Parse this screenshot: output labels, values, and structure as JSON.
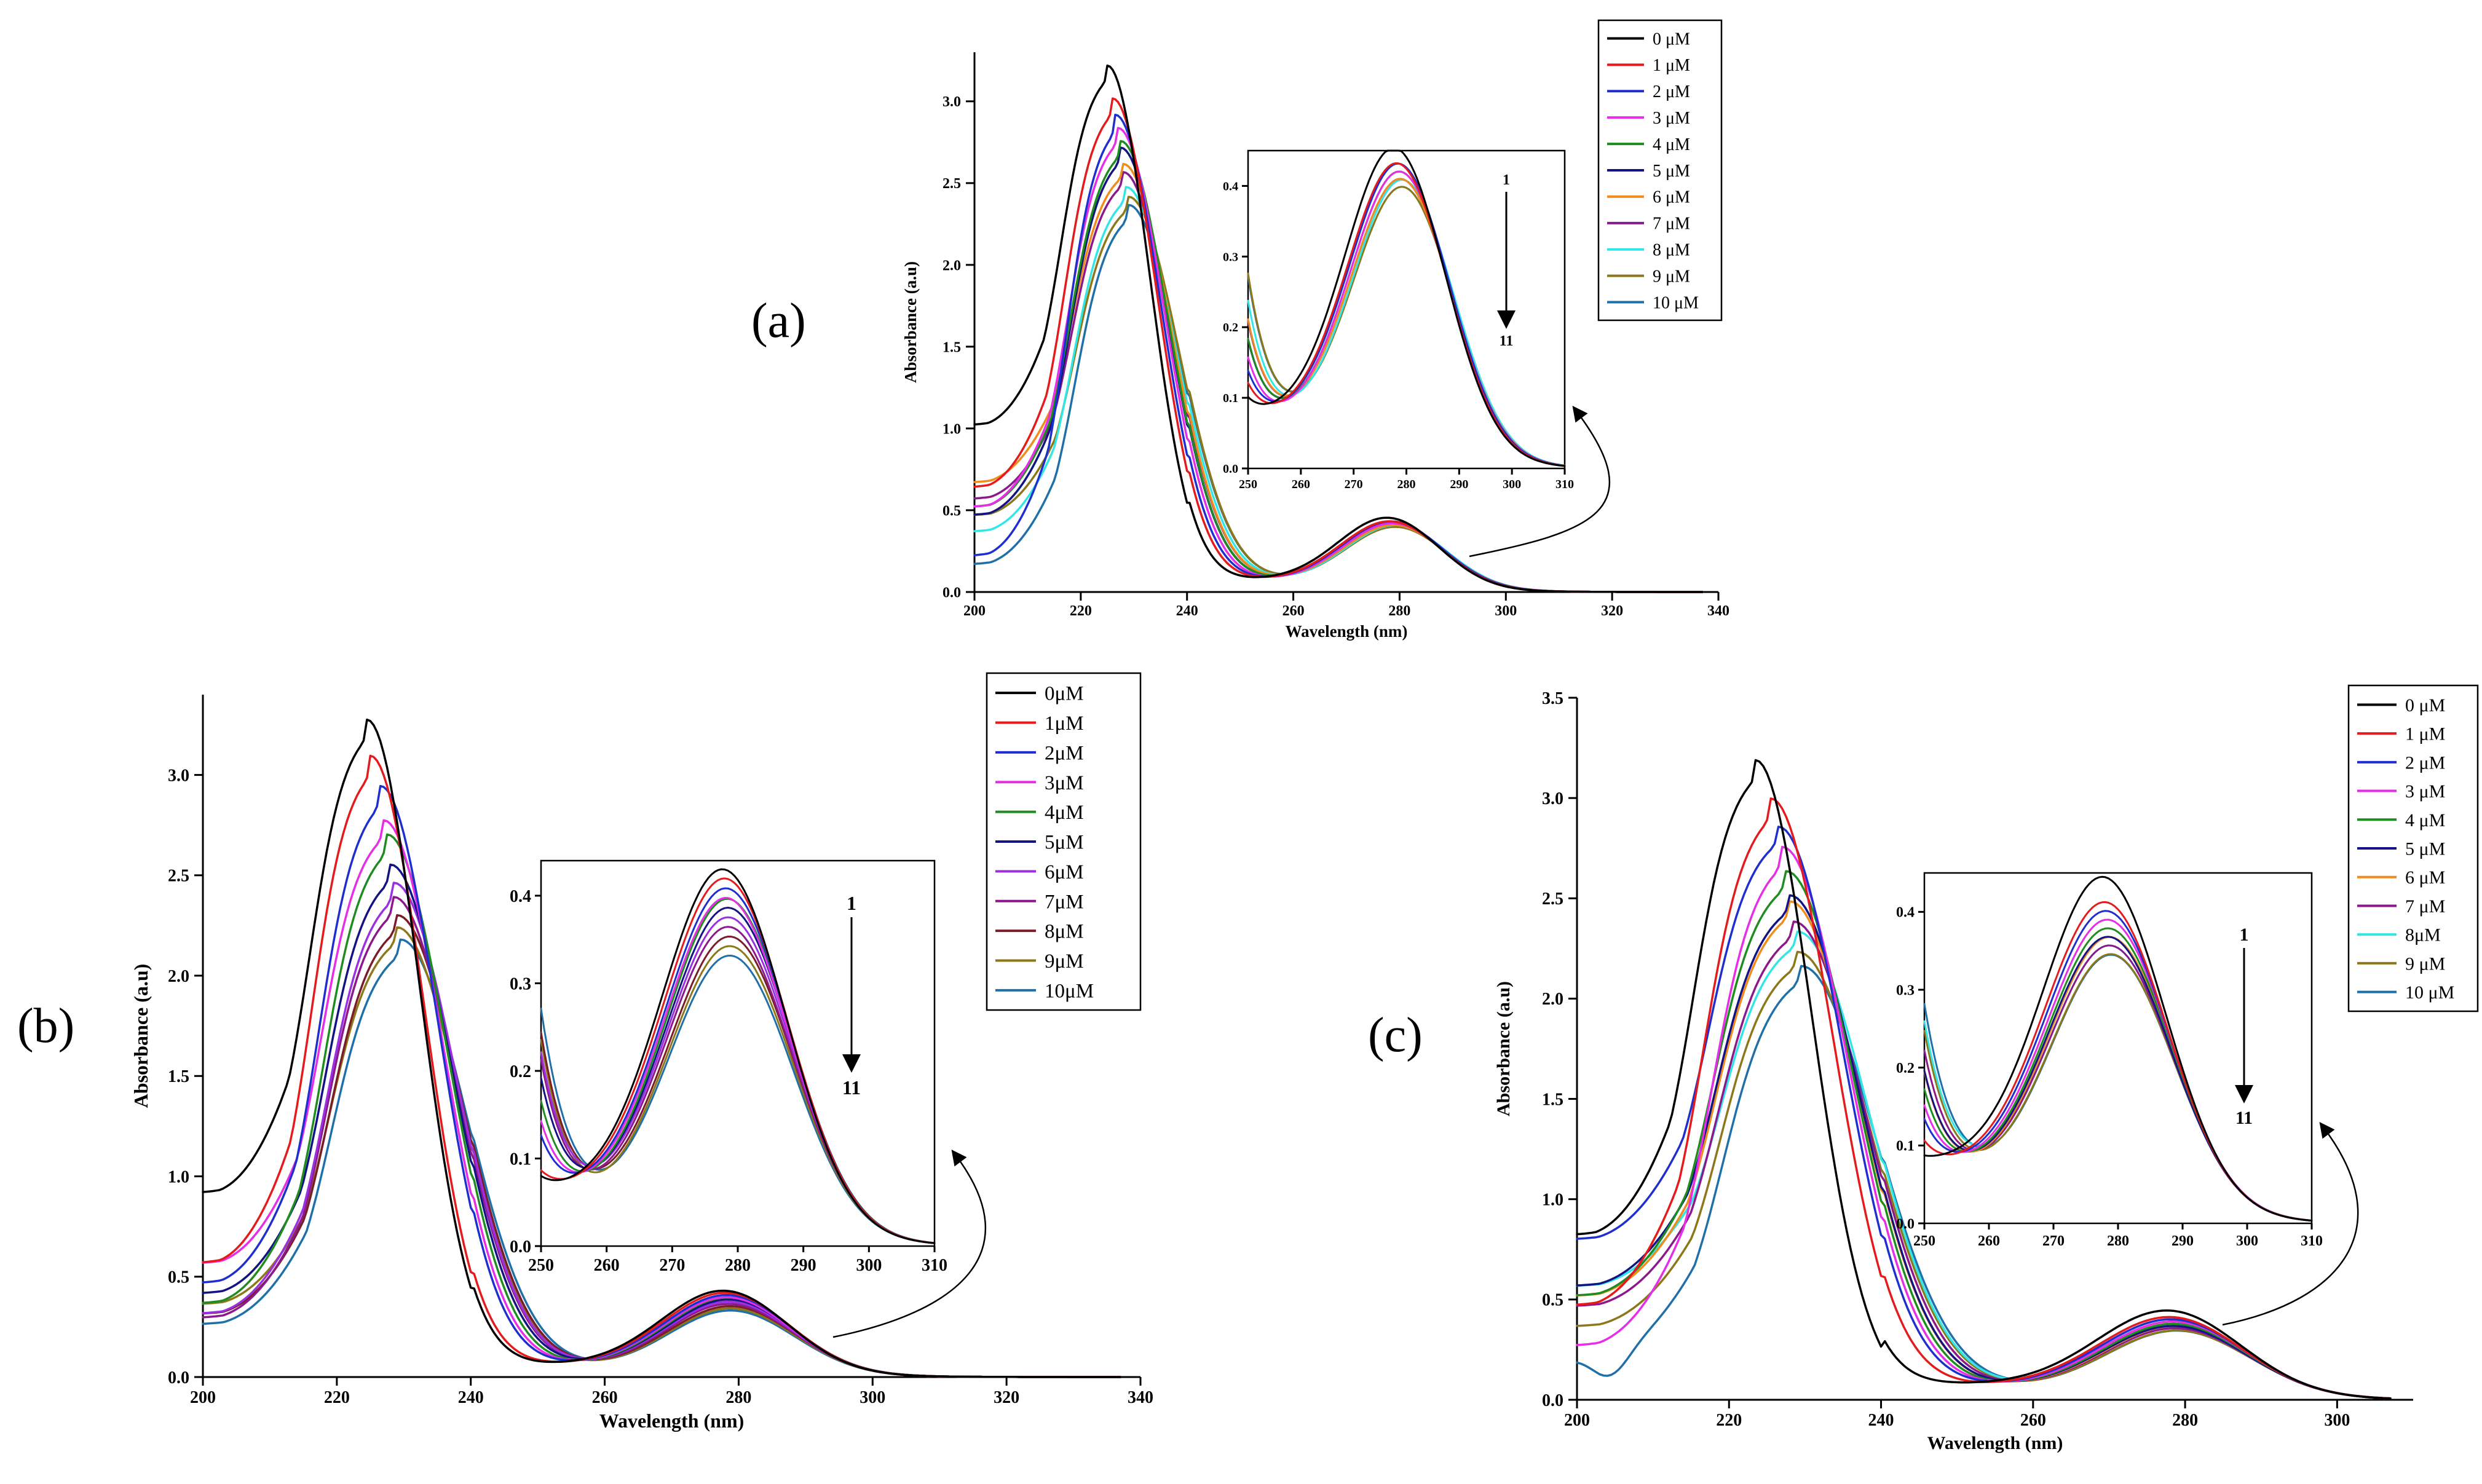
{
  "colors": [
    "#000000",
    "#e41a1c",
    "#1f2fcf",
    "#e62ee6",
    "#1e8c1e",
    "#131383",
    "#f08c1e",
    "#8c198c",
    "#33e6e6",
    "#8c7819",
    "#1f6fa8"
  ],
  "colors_b": [
    "#000000",
    "#e41a1c",
    "#1f2fcf",
    "#e62ee6",
    "#1e8c1e",
    "#131383",
    "#9b30e0",
    "#8c198c",
    "#7a1d2a",
    "#8c7819",
    "#1f6fa8"
  ],
  "chart_data": [
    {
      "panel": "(a)",
      "type": "line",
      "xlabel": "Wavelength (nm)",
      "ylabel": "Absorbance (a.u)",
      "xlim": [
        200,
        340
      ],
      "ylim": [
        0,
        3.3
      ],
      "xticks": [
        200,
        220,
        240,
        260,
        280,
        300,
        320,
        340
      ],
      "xtick_labels": [
        "200",
        "220",
        "240",
        "260",
        "280",
        "300",
        "320",
        "340"
      ],
      "yticks": [
        0,
        0.5,
        1.0,
        1.5,
        2.0,
        2.5,
        3.0
      ],
      "ytick_labels": [
        "0.0",
        "0.5",
        "1.0",
        "1.5",
        "2.0",
        "2.5",
        "3.0"
      ],
      "legend": [
        "0 μM",
        "1 μM",
        "2 μM",
        "3 μM",
        "4 μM",
        "5 μM",
        "6 μM",
        "7 μM",
        "8 μM",
        "9 μM",
        "10 μM"
      ],
      "series": [
        {
          "name": "0 μM",
          "start": 1.0,
          "pre": 0,
          "peak_x": 225,
          "peak": 3.2,
          "sh_x": 278,
          "sh": 0.43,
          "min_v": 0.22
        },
        {
          "name": "1 μM",
          "start": 0.62,
          "pre": 0,
          "peak_x": 226,
          "peak": 3.0,
          "sh_x": 278.5,
          "sh": 0.41,
          "min_v": 0.21
        },
        {
          "name": "2 μM",
          "start": 0.2,
          "pre": 0,
          "peak_x": 226.5,
          "peak": 2.9,
          "sh_x": 278.8,
          "sh": 0.41,
          "min_v": 0.21
        },
        {
          "name": "3 μM",
          "start": 0.5,
          "pre": 0,
          "peak_x": 227,
          "peak": 2.82,
          "sh_x": 279,
          "sh": 0.4,
          "min_v": 0.2
        },
        {
          "name": "4 μM",
          "start": 0.5,
          "pre": 0,
          "peak_x": 227.5,
          "peak": 2.74,
          "sh_x": 279,
          "sh": 0.4,
          "min_v": 0.2
        },
        {
          "name": "5 μM",
          "start": 0.45,
          "pre": 0,
          "peak_x": 227.5,
          "peak": 2.7,
          "sh_x": 279,
          "sh": 0.4,
          "min_v": 0.2
        },
        {
          "name": "6 μM",
          "start": 0.65,
          "pre": 0,
          "peak_x": 228,
          "peak": 2.6,
          "sh_x": 279.2,
          "sh": 0.39,
          "min_v": 0.2
        },
        {
          "name": "7 μM",
          "start": 0.55,
          "pre": 0,
          "peak_x": 228,
          "peak": 2.55,
          "sh_x": 279.2,
          "sh": 0.39,
          "min_v": 0.2
        },
        {
          "name": "8 μM",
          "start": 0.35,
          "pre": 0,
          "peak_x": 228.5,
          "peak": 2.46,
          "sh_x": 279.5,
          "sh": 0.39,
          "min_v": 0.19
        },
        {
          "name": "9 μM",
          "start": 0.45,
          "pre": 0,
          "peak_x": 229,
          "peak": 2.4,
          "sh_x": 279.5,
          "sh": 0.38,
          "min_v": 0.19
        },
        {
          "name": "10 μM",
          "start": 0.15,
          "pre": 0,
          "peak_x": 229,
          "peak": 2.35,
          "sh_x": 279.5,
          "sh": 0.38,
          "min_v": 0.19
        }
      ],
      "inset": {
        "xlim": [
          250,
          310
        ],
        "ylim": [
          0,
          0.45
        ],
        "xticks": [
          250,
          260,
          270,
          280,
          290,
          300,
          310
        ],
        "xtick_labels": [
          "250",
          "260",
          "270",
          "280",
          "290",
          "300",
          "310"
        ],
        "yticks": [
          0,
          0.1,
          0.2,
          0.3,
          0.4
        ],
        "ytick_labels": [
          "0.0",
          "0.1",
          "0.2",
          "0.3",
          "0.4"
        ],
        "arrow_top": "1",
        "arrow_bottom": "11"
      }
    },
    {
      "panel": "(b)",
      "type": "line",
      "xlabel": "Wavelength (nm)",
      "ylabel": "Absorbance (a.u)",
      "xlim": [
        200,
        340
      ],
      "ylim": [
        0,
        3.4
      ],
      "xticks": [
        200,
        220,
        240,
        260,
        280,
        300,
        320,
        340
      ],
      "xtick_labels": [
        "200",
        "220",
        "240",
        "260",
        "280",
        "300",
        "320",
        "340"
      ],
      "yticks": [
        0,
        0.5,
        1.0,
        1.5,
        2.0,
        2.5,
        3.0
      ],
      "ytick_labels": [
        "0.0",
        "0.5",
        "1.0",
        "1.5",
        "2.0",
        "2.5",
        "3.0"
      ],
      "legend": [
        "0μM",
        "1μM",
        "2μM",
        "3μM",
        "4μM",
        "5μM",
        "6μM",
        "7μM",
        "8μM",
        "9μM",
        "10μM"
      ],
      "series": [
        {
          "name": "0μM",
          "start": 0.9,
          "pre": 0,
          "peak_x": 224.5,
          "peak": 3.26,
          "sh_x": 278,
          "sh": 0.41,
          "min_v": 0.18
        },
        {
          "name": "1μM",
          "start": 0.55,
          "pre": 0,
          "peak_x": 225,
          "peak": 3.08,
          "sh_x": 278.3,
          "sh": 0.4,
          "min_v": 0.18
        },
        {
          "name": "2μM",
          "start": 0.45,
          "pre": 0,
          "peak_x": 226.5,
          "peak": 2.93,
          "sh_x": 278.5,
          "sh": 0.39,
          "min_v": 0.17
        },
        {
          "name": "3μM",
          "start": 0.55,
          "pre": 0,
          "peak_x": 227,
          "peak": 2.76,
          "sh_x": 278.5,
          "sh": 0.38,
          "min_v": 0.16
        },
        {
          "name": "4μM",
          "start": 0.35,
          "pre": 0,
          "peak_x": 227.5,
          "peak": 2.69,
          "sh_x": 278.7,
          "sh": 0.38,
          "min_v": 0.15
        },
        {
          "name": "5μM",
          "start": 0.4,
          "pre": 0,
          "peak_x": 228,
          "peak": 2.54,
          "sh_x": 278.8,
          "sh": 0.37,
          "min_v": 0.15
        },
        {
          "name": "6μM",
          "start": 0.3,
          "pre": 0,
          "peak_x": 228.5,
          "peak": 2.45,
          "sh_x": 278.8,
          "sh": 0.36,
          "min_v": 0.14
        },
        {
          "name": "7μM",
          "start": 0.28,
          "pre": 0,
          "peak_x": 228.5,
          "peak": 2.38,
          "sh_x": 278.8,
          "sh": 0.35,
          "min_v": 0.13
        },
        {
          "name": "8μM",
          "start": 0.3,
          "pre": 0,
          "peak_x": 229,
          "peak": 2.29,
          "sh_x": 279,
          "sh": 0.34,
          "min_v": 0.12
        },
        {
          "name": "9μM",
          "start": 0.35,
          "pre": 0,
          "peak_x": 229,
          "peak": 2.23,
          "sh_x": 279,
          "sh": 0.33,
          "min_v": 0.11
        },
        {
          "name": "10μM",
          "start": 0.25,
          "pre": 0,
          "peak_x": 229.5,
          "peak": 2.17,
          "sh_x": 279,
          "sh": 0.32,
          "min_v": 0.1
        }
      ],
      "inset": {
        "xlim": [
          250,
          310
        ],
        "ylim": [
          0,
          0.44
        ],
        "xticks": [
          250,
          260,
          270,
          280,
          290,
          300,
          310
        ],
        "xtick_labels": [
          "250",
          "260",
          "270",
          "280",
          "290",
          "300",
          "310"
        ],
        "yticks": [
          0,
          0.1,
          0.2,
          0.3,
          0.4
        ],
        "ytick_labels": [
          "0.0",
          "0.1",
          "0.2",
          "0.3",
          "0.4"
        ],
        "arrow_top": "1",
        "arrow_bottom": "11"
      }
    },
    {
      "panel": "(c)",
      "type": "line",
      "xlabel": "Wavelength (nm)",
      "ylabel": "Absorbance (a.u)",
      "xlim": [
        200,
        310
      ],
      "ylim": [
        0,
        3.5
      ],
      "xticks": [
        200,
        220,
        240,
        260,
        280,
        300
      ],
      "xtick_labels": [
        "200",
        "220",
        "240",
        "260",
        "280",
        "300"
      ],
      "yticks": [
        0,
        0.5,
        1.0,
        1.5,
        2.0,
        2.5,
        3.0,
        3.5
      ],
      "ytick_labels": [
        "0.0",
        "0.5",
        "1.0",
        "1.5",
        "2.0",
        "2.5",
        "3.0",
        "3.5"
      ],
      "legend": [
        "0 μM",
        "1 μM",
        "2 μM",
        "3 μM",
        "4 μM",
        "5 μM",
        "6 μM",
        "7 μM",
        "8μM",
        "9 μM",
        "10 μM"
      ],
      "series": [
        {
          "name": "0 μM",
          "start": 0.8,
          "pre": 0,
          "peak_x": 223.5,
          "peak": 3.17,
          "sh_x": 278,
          "sh": 0.42,
          "min_v": 0.23
        },
        {
          "name": "1 μM",
          "start": 0.45,
          "pre": 0,
          "peak_x": 225.5,
          "peak": 2.98,
          "sh_x": 278.3,
          "sh": 0.39,
          "min_v": 0.21
        },
        {
          "name": "2 μM",
          "start": 0.78,
          "pre": 0,
          "peak_x": 226.5,
          "peak": 2.84,
          "sh_x": 278.5,
          "sh": 0.38,
          "min_v": 0.2
        },
        {
          "name": "3 μM",
          "start": 0.25,
          "pre": 0,
          "peak_x": 227,
          "peak": 2.74,
          "sh_x": 278.7,
          "sh": 0.37,
          "min_v": 0.19
        },
        {
          "name": "4 μM",
          "start": 0.5,
          "pre": 0,
          "peak_x": 227.5,
          "peak": 2.62,
          "sh_x": 278.8,
          "sh": 0.36,
          "min_v": 0.18
        },
        {
          "name": "5 μM",
          "start": 0.55,
          "pre": 0,
          "peak_x": 228,
          "peak": 2.5,
          "sh_x": 278.8,
          "sh": 0.35,
          "min_v": 0.17
        },
        {
          "name": "6 μM",
          "start": 0.5,
          "pre": 0,
          "peak_x": 228,
          "peak": 2.47,
          "sh_x": 279,
          "sh": 0.35,
          "min_v": 0.17
        },
        {
          "name": "7 μM",
          "start": 0.45,
          "pre": 0,
          "peak_x": 228.5,
          "peak": 2.37,
          "sh_x": 279,
          "sh": 0.34,
          "min_v": 0.16
        },
        {
          "name": "8μM",
          "start": 0.55,
          "pre": 0,
          "peak_x": 229,
          "peak": 2.32,
          "sh_x": 279,
          "sh": 0.34,
          "min_v": 0.16
        },
        {
          "name": "9 μM",
          "start": 0.35,
          "pre": 0,
          "peak_x": 229,
          "peak": 2.22,
          "sh_x": 279.2,
          "sh": 0.33,
          "min_v": 0.15
        },
        {
          "name": "10 μM",
          "start": 0.18,
          "pre": 0.08,
          "peak_x": 229.5,
          "peak": 2.15,
          "sh_x": 279.2,
          "sh": 0.33,
          "min_v": 0.14
        }
      ],
      "inset": {
        "xlim": [
          250,
          310
        ],
        "ylim": [
          0,
          0.45
        ],
        "xticks": [
          250,
          260,
          270,
          280,
          290,
          300,
          310
        ],
        "xtick_labels": [
          "250",
          "260",
          "270",
          "280",
          "290",
          "300",
          "310"
        ],
        "yticks": [
          0,
          0.1,
          0.2,
          0.3,
          0.4
        ],
        "ytick_labels": [
          "0.0",
          "0.1",
          "0.2",
          "0.3",
          "0.4"
        ],
        "arrow_top": "1",
        "arrow_bottom": "11"
      }
    }
  ]
}
